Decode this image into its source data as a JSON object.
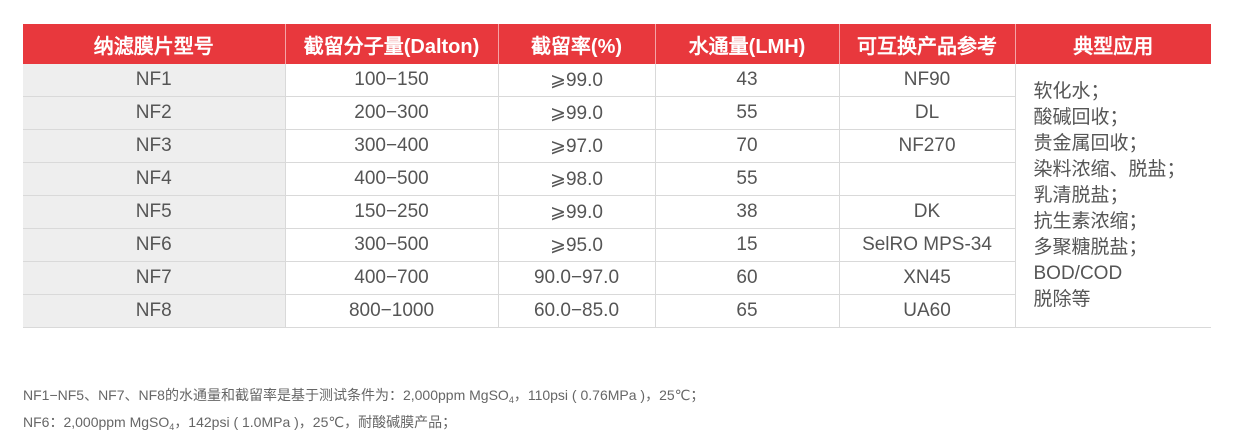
{
  "table": {
    "headers": [
      "纳滤膜片型号",
      "截留分子量(Dalton)",
      "截留率(%)",
      "水通量(LMH)",
      "可互换产品参考",
      "典型应用"
    ],
    "rows": [
      [
        "NF1",
        "100−150",
        "⩾99.0",
        "43",
        "NF90"
      ],
      [
        "NF2",
        "200−300",
        "⩾99.0",
        "55",
        "DL"
      ],
      [
        "NF3",
        "300−400",
        "⩾97.0",
        "70",
        "NF270"
      ],
      [
        "NF4",
        "400−500",
        "⩾98.0",
        "55",
        ""
      ],
      [
        "NF5",
        "150−250",
        "⩾99.0",
        "38",
        "DK"
      ],
      [
        "NF6",
        "300−500",
        "⩾95.0",
        "15",
        "SelRO MPS-34"
      ],
      [
        "NF7",
        "400−700",
        "90.0−97.0",
        "60",
        "XN45"
      ],
      [
        "NF8",
        "800−1000",
        "60.0−85.0",
        "65",
        "UA60"
      ]
    ],
    "applications": [
      "软化水；",
      "酸碱回收；",
      "贵金属回收；",
      "染料浓缩、脱盐；",
      "乳清脱盐；",
      "抗生素浓缩；",
      "多聚糖脱盐；",
      "BOD/COD",
      "脱除等"
    ]
  },
  "notes": {
    "line1": {
      "before_sub": "NF1−NF5、NF7、NF8的水通量和截留率是基于测试条件为：2,000ppm MgSO",
      "sub": "4",
      "after_sub": "，110psi ( 0.76MPa )，25℃；"
    },
    "line2": {
      "before_sub": "NF6：2,000ppm MgSO",
      "sub": "4",
      "after_sub": "，142psi ( 1.0MPa )，25℃，耐酸碱膜产品；"
    }
  }
}
